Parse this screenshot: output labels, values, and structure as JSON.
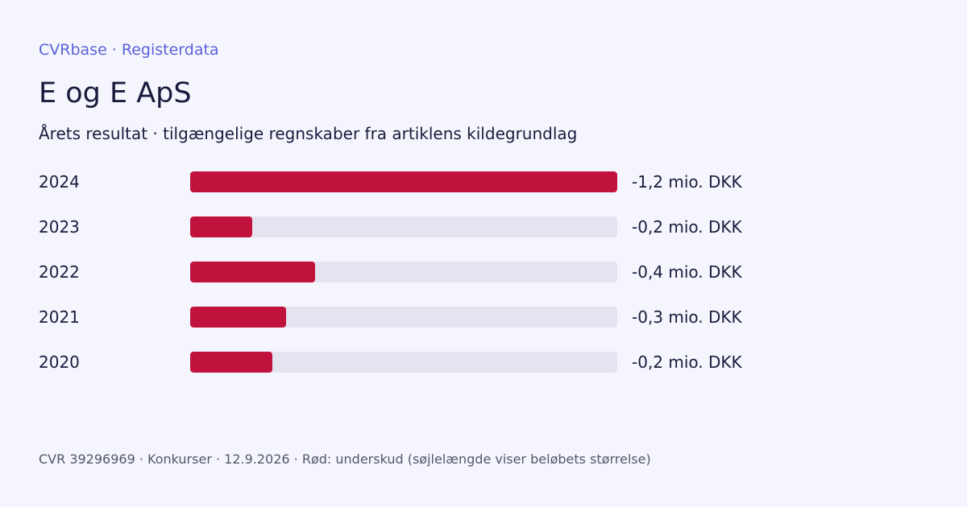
{
  "header": {
    "brand": "CVRbase · Registerdata",
    "title": "E og E ApS",
    "subtitle": "Årets resultat · tilgængelige regnskaber fra artiklens kildegrundlag"
  },
  "colors": {
    "negative": "#c0123c",
    "track": "#e3e4ef",
    "brand": "#5a62d6",
    "background": "#f5f6fd"
  },
  "chart_data": {
    "type": "bar",
    "orientation": "horizontal",
    "title": "Årets resultat · tilgængelige regnskaber fra artiklens kildegrundlag",
    "categories": [
      "2024",
      "2023",
      "2022",
      "2021",
      "2020"
    ],
    "values": [
      -1.2,
      -0.175,
      -0.35,
      -0.27,
      -0.23
    ],
    "value_labels": [
      "-1,2 mio. DKK",
      "-0,2 mio. DKK",
      "-0,4 mio. DKK",
      "-0,3 mio. DKK",
      "-0,2 mio. DKK"
    ],
    "unit": "mio. DKK",
    "xlim": [
      0,
      1.2
    ],
    "grid": false,
    "legend": "none"
  },
  "footer": {
    "text": "CVR 39296969 · Konkurser · 12.9.2026 · Rød: underskud (søjlelængde viser beløbets størrelse)"
  }
}
